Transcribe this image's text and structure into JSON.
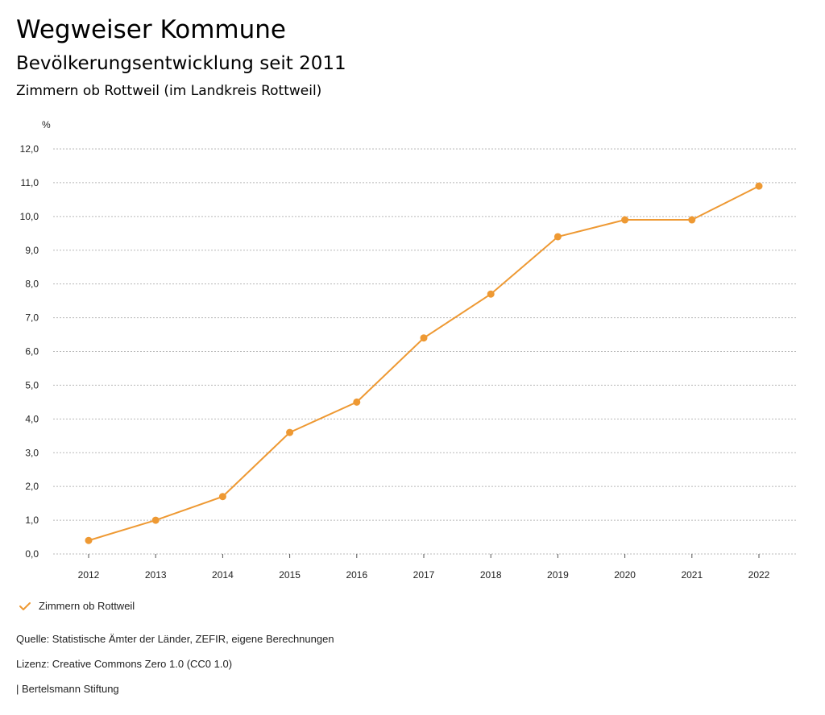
{
  "header": {
    "title": "Wegweiser Kommune",
    "subtitle": "Bevölkerungsentwicklung seit 2011",
    "region": "Zimmern ob Rottweil (im Landkreis Rottweil)"
  },
  "chart_data": {
    "type": "line",
    "unit_label": "%",
    "x": [
      "2012",
      "2013",
      "2014",
      "2015",
      "2016",
      "2017",
      "2018",
      "2019",
      "2020",
      "2021",
      "2022"
    ],
    "series": [
      {
        "name": "Zimmern ob Rottweil",
        "color": "#ee9933",
        "values": [
          0.4,
          1.0,
          1.7,
          3.6,
          4.5,
          6.4,
          7.7,
          9.4,
          9.9,
          9.9,
          10.9
        ]
      }
    ],
    "ylim": [
      0,
      12
    ],
    "yticks": [
      "0,0",
      "1,0",
      "2,0",
      "3,0",
      "4,0",
      "5,0",
      "6,0",
      "7,0",
      "8,0",
      "9,0",
      "10,0",
      "11,0",
      "12,0"
    ],
    "grid": true,
    "legend_position": "bottom-left"
  },
  "legend": {
    "label": "Zimmern ob Rottweil"
  },
  "footer": {
    "source": "Quelle: Statistische Ämter der Länder, ZEFIR, eigene Berechnungen",
    "license": "Lizenz: Creative Commons Zero 1.0 (CC0 1.0)",
    "publisher": "| Bertelsmann Stiftung"
  }
}
